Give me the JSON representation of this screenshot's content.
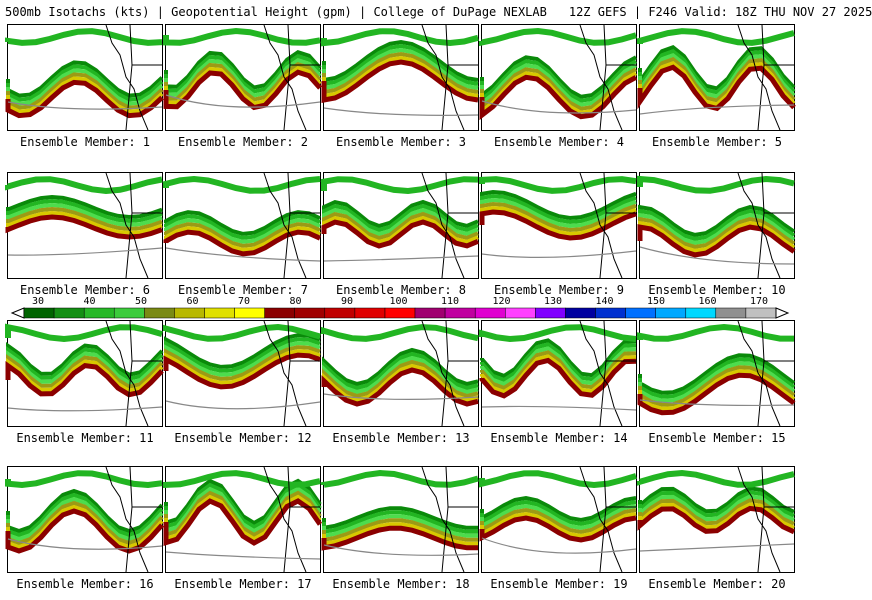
{
  "header": {
    "left": "500mb Isotachs (kts) | Geopotential Height (gpm) | College of DuPage NEXLAB",
    "right": "12Z GEFS | F246 Valid: 18Z THU NOV 27 2025"
  },
  "members": [
    "Ensemble Member: 1",
    "Ensemble Member: 2",
    "Ensemble Member: 3",
    "Ensemble Member: 4",
    "Ensemble Member: 5",
    "Ensemble Member: 6",
    "Ensemble Member: 7",
    "Ensemble Member: 8",
    "Ensemble Member: 9",
    "Ensemble Member: 10",
    "Ensemble Member: 11",
    "Ensemble Member: 12",
    "Ensemble Member: 13",
    "Ensemble Member: 14",
    "Ensemble Member: 15",
    "Ensemble Member: 16",
    "Ensemble Member: 17",
    "Ensemble Member: 18",
    "Ensemble Member: 19",
    "Ensemble Member: 20"
  ],
  "colorbar": {
    "labels": [
      "30",
      "40",
      "50",
      "60",
      "70",
      "80",
      "90",
      "100",
      "110",
      "120",
      "130",
      "140",
      "150",
      "160",
      "170"
    ],
    "colors": [
      "#006400",
      "#138f13",
      "#27b827",
      "#3ccc3c",
      "#7a8a14",
      "#b8b800",
      "#e0e000",
      "#ffff00",
      "#8b0000",
      "#a00000",
      "#c00000",
      "#e00000",
      "#ff0000",
      "#a00070",
      "#c000a0",
      "#e000d0",
      "#ff40ff",
      "#8000ff",
      "#0000a0",
      "#0030d0",
      "#0070ff",
      "#00a8ff",
      "#00d8ff",
      "#909090",
      "#c0c0c0"
    ]
  }
}
